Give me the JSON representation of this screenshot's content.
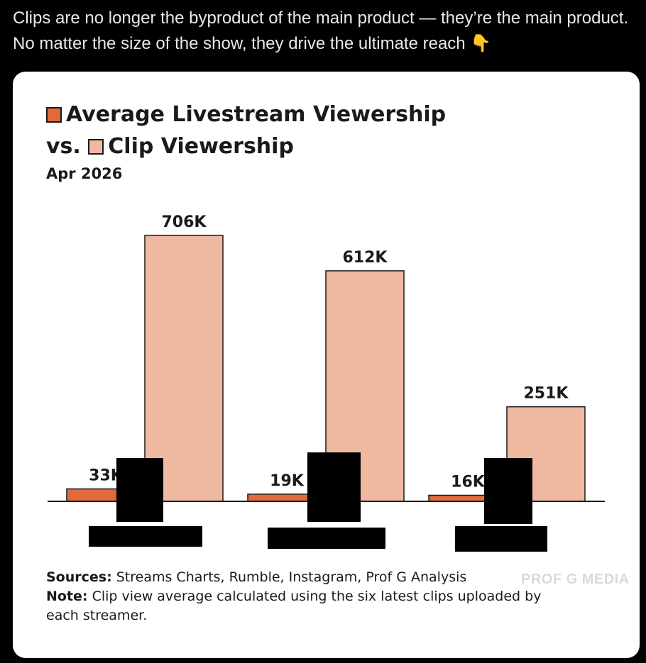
{
  "tweet": {
    "text": "Clips are no longer the byproduct of the main product — they’re the main product. No matter the size of the show, they drive the ultimate reach",
    "emoji": "👇"
  },
  "chart_data": {
    "type": "bar",
    "title_line1": "Average Livestream Viewership",
    "title_line2_prefix": "vs.",
    "title_line2": "Clip Viewership",
    "subtitle": "Apr 2026",
    "categories": [
      "",
      "",
      ""
    ],
    "series": [
      {
        "name": "Average Livestream Viewership",
        "values": [
          33,
          19,
          16
        ],
        "labels": [
          "33K",
          "19K",
          "16K"
        ],
        "color": "#e06a3b"
      },
      {
        "name": "Clip Viewership",
        "values": [
          706,
          612,
          251
        ],
        "labels": [
          "706K",
          "612K",
          "251K"
        ],
        "color": "#efb8a0"
      }
    ],
    "unit": "K",
    "ylim": [
      0,
      706
    ],
    "grid": false,
    "legend": "inline-in-title"
  },
  "footer": {
    "sources_label": "Sources:",
    "sources_text": "Streams Charts, Rumble, Instagram, Prof G Analysis",
    "note_label": "Note:",
    "note_text": "Clip view average calculated using the six latest clips uploaded by each streamer."
  },
  "brand": "PROF G MEDIA",
  "colors": {
    "background": "#000000",
    "card": "#ffffff",
    "live": "#e06a3b",
    "clip": "#efb8a0",
    "text": "#1a1a1a"
  }
}
